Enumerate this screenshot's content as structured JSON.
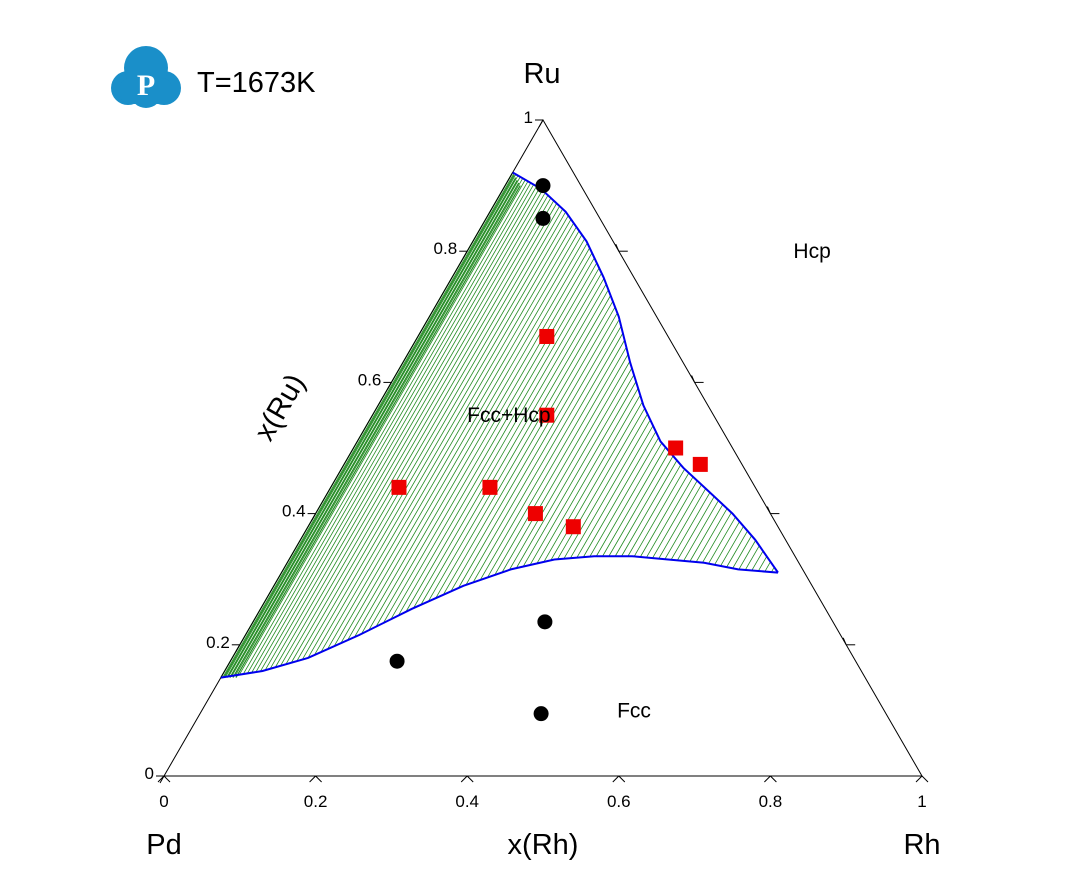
{
  "logo": {
    "glyph": "P",
    "color": "#1a8fc9",
    "icon": "cloud-p-logo-icon"
  },
  "temperature_label": "T=1673K",
  "chart_data": {
    "type": "ternary",
    "vertices": {
      "top": "Ru",
      "left": "Pd",
      "right": "Rh"
    },
    "bottom_axis": {
      "label": "x(Rh)",
      "ticks": [
        0,
        0.2,
        0.4,
        0.6,
        0.8,
        1
      ],
      "tick_labels": [
        "0",
        "0.2",
        "0.4",
        "0.6",
        "0.8",
        "1"
      ]
    },
    "left_axis": {
      "label": "x(Ru)",
      "ticks": [
        0,
        0.2,
        0.4,
        0.6,
        0.8,
        1
      ],
      "tick_labels": [
        "0",
        "0.2",
        "0.4",
        "0.6",
        "0.8",
        "1"
      ]
    },
    "right_axis_ticks": [
      0.2,
      0.4,
      0.6,
      0.8
    ],
    "regions": [
      {
        "label": "Hcp",
        "x_rh": 0.455,
        "x_ru": 0.8
      },
      {
        "label": "Fcc+Hcp",
        "x_rh": 0.18,
        "x_ru": 0.55
      },
      {
        "label": "Fcc",
        "x_rh": 0.57,
        "x_ru": 0.1
      }
    ],
    "phase_boundaries": [
      {
        "name": "Hcp boundary",
        "color": "#0000ee",
        "points": [
          {
            "x_rh": 0.0,
            "x_ru": 0.92
          },
          {
            "x_rh": 0.05,
            "x_ru": 0.895
          },
          {
            "x_rh": 0.1,
            "x_ru": 0.86
          },
          {
            "x_rh": 0.15,
            "x_ru": 0.815
          },
          {
            "x_rh": 0.2,
            "x_ru": 0.76
          },
          {
            "x_rh": 0.25,
            "x_ru": 0.7
          },
          {
            "x_rh": 0.3,
            "x_ru": 0.63
          },
          {
            "x_rh": 0.35,
            "x_ru": 0.565
          },
          {
            "x_rh": 0.4,
            "x_ru": 0.51
          },
          {
            "x_rh": 0.45,
            "x_ru": 0.47
          },
          {
            "x_rh": 0.5,
            "x_ru": 0.435
          },
          {
            "x_rh": 0.55,
            "x_ru": 0.4
          },
          {
            "x_rh": 0.6,
            "x_ru": 0.36
          },
          {
            "x_rh": 0.655,
            "x_ru": 0.31
          }
        ]
      },
      {
        "name": "Fcc boundary",
        "color": "#0000ee",
        "points": [
          {
            "x_rh": 0.0,
            "x_ru": 0.15
          },
          {
            "x_rh": 0.05,
            "x_ru": 0.16
          },
          {
            "x_rh": 0.1,
            "x_ru": 0.18
          },
          {
            "x_rh": 0.15,
            "x_ru": 0.215
          },
          {
            "x_rh": 0.2,
            "x_ru": 0.255
          },
          {
            "x_rh": 0.25,
            "x_ru": 0.29
          },
          {
            "x_rh": 0.3,
            "x_ru": 0.315
          },
          {
            "x_rh": 0.35,
            "x_ru": 0.33
          },
          {
            "x_rh": 0.4,
            "x_ru": 0.335
          },
          {
            "x_rh": 0.45,
            "x_ru": 0.335
          },
          {
            "x_rh": 0.5,
            "x_ru": 0.33
          },
          {
            "x_rh": 0.55,
            "x_ru": 0.325
          },
          {
            "x_rh": 0.6,
            "x_ru": 0.315
          },
          {
            "x_rh": 0.655,
            "x_ru": 0.31
          }
        ]
      }
    ],
    "tie_lines": {
      "color": "#228b22",
      "count": 90
    },
    "series": [
      {
        "marker": "circle",
        "color": "#000000",
        "points": [
          {
            "x_rh": 0.05,
            "x_ru": 0.9
          },
          {
            "x_rh": 0.075,
            "x_ru": 0.85
          },
          {
            "x_rh": 0.385,
            "x_ru": 0.235
          },
          {
            "x_rh": 0.22,
            "x_ru": 0.175
          },
          {
            "x_rh": 0.45,
            "x_ru": 0.095
          }
        ]
      },
      {
        "marker": "square",
        "color": "#ee0000",
        "points": [
          {
            "x_rh": 0.17,
            "x_ru": 0.67
          },
          {
            "x_rh": 0.23,
            "x_ru": 0.55
          },
          {
            "x_rh": 0.09,
            "x_ru": 0.44
          },
          {
            "x_rh": 0.21,
            "x_ru": 0.44
          },
          {
            "x_rh": 0.29,
            "x_ru": 0.4
          },
          {
            "x_rh": 0.35,
            "x_ru": 0.38
          },
          {
            "x_rh": 0.425,
            "x_ru": 0.5
          },
          {
            "x_rh": 0.47,
            "x_ru": 0.475
          }
        ]
      }
    ]
  }
}
